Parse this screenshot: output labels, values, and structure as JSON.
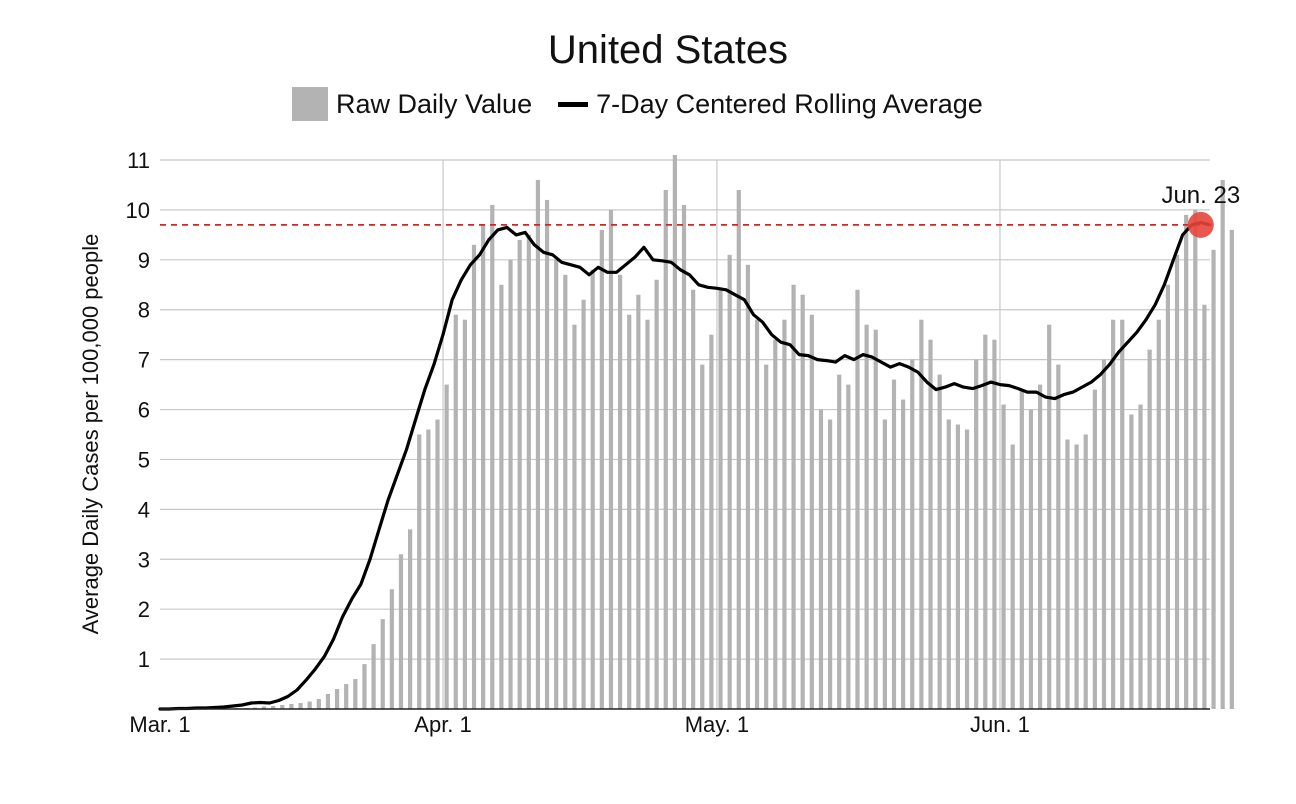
{
  "chart_data": {
    "type": "bar",
    "title": "United States",
    "ylabel": "Average Daily Cases per 100,000 people",
    "xlabel": "",
    "legend": [
      {
        "label": "Raw Daily Value",
        "kind": "bar",
        "color": "#b3b3b3"
      },
      {
        "label": "7-Day Centered Rolling Average",
        "kind": "line",
        "color": "#000000"
      }
    ],
    "legend_position": "top-center",
    "grid": true,
    "ylim": [
      0,
      11
    ],
    "yticks": [
      1,
      2,
      3,
      4,
      5,
      6,
      7,
      8,
      9,
      10,
      11
    ],
    "xticks": [
      {
        "label": "Mar. 1",
        "day": 0
      },
      {
        "label": "Apr. 1",
        "day": 31
      },
      {
        "label": "May. 1",
        "day": 61
      },
      {
        "label": "Jun. 1",
        "day": 92
      }
    ],
    "x_start": "Mar. 1",
    "series": [
      {
        "name": "Raw Daily Value",
        "kind": "bar",
        "values": [
          0.0,
          0.0,
          0.0,
          0.0,
          0.0,
          0.01,
          0.01,
          0.01,
          0.02,
          0.02,
          0.03,
          0.05,
          0.06,
          0.08,
          0.1,
          0.12,
          0.15,
          0.2,
          0.3,
          0.4,
          0.5,
          0.6,
          0.9,
          1.3,
          1.8,
          2.4,
          3.1,
          3.6,
          5.5,
          5.6,
          5.8,
          6.5,
          7.9,
          7.8,
          9.3,
          9.7,
          10.1,
          8.5,
          9.0,
          9.4,
          9.5,
          10.6,
          10.2,
          9.0,
          8.7,
          7.7,
          8.2,
          8.8,
          9.6,
          10.0,
          8.7,
          7.9,
          8.3,
          7.8,
          8.6,
          10.4,
          11.1,
          10.1,
          8.4,
          6.9,
          7.5,
          8.4,
          9.1,
          10.4,
          8.9,
          7.8,
          6.9,
          7.4,
          7.8,
          8.5,
          8.3,
          7.9,
          6.0,
          5.8,
          6.7,
          6.5,
          8.4,
          7.7,
          7.6,
          5.8,
          6.6,
          6.2,
          7.0,
          7.8,
          7.4,
          6.7,
          5.8,
          5.7,
          5.6,
          7.0,
          7.5,
          7.4,
          6.1,
          5.3,
          6.4,
          6.0,
          6.5,
          7.7,
          6.9,
          5.4,
          5.3,
          5.5,
          6.4,
          7.0,
          7.8,
          7.8,
          5.9,
          6.1,
          7.2,
          7.8,
          8.5,
          9.1,
          9.9,
          10.0,
          8.1,
          9.2,
          10.6,
          9.6
        ]
      },
      {
        "name": "7-Day Centered Rolling Average",
        "kind": "line",
        "values": [
          0.0,
          0.0,
          0.01,
          0.01,
          0.02,
          0.02,
          0.03,
          0.04,
          0.06,
          0.08,
          0.12,
          0.13,
          0.12,
          0.17,
          0.25,
          0.38,
          0.58,
          0.8,
          1.05,
          1.4,
          1.85,
          2.2,
          2.5,
          3.0,
          3.6,
          4.2,
          4.7,
          5.2,
          5.8,
          6.4,
          6.9,
          7.5,
          8.2,
          8.6,
          8.9,
          9.1,
          9.4,
          9.6,
          9.65,
          9.5,
          9.55,
          9.3,
          9.15,
          9.1,
          8.95,
          8.9,
          8.85,
          8.7,
          8.85,
          8.75,
          8.75,
          8.9,
          9.05,
          9.25,
          9.0,
          8.98,
          8.95,
          8.8,
          8.7,
          8.5,
          8.45,
          8.43,
          8.4,
          8.3,
          8.2,
          7.9,
          7.75,
          7.5,
          7.35,
          7.3,
          7.1,
          7.08,
          7.0,
          6.98,
          6.95,
          7.08,
          7.0,
          7.1,
          7.05,
          6.95,
          6.85,
          6.92,
          6.85,
          6.75,
          6.55,
          6.4,
          6.45,
          6.52,
          6.45,
          6.42,
          6.48,
          6.55,
          6.5,
          6.48,
          6.42,
          6.35,
          6.35,
          6.25,
          6.22,
          6.3,
          6.35,
          6.45,
          6.55,
          6.7,
          6.9,
          7.15,
          7.35,
          7.55,
          7.8,
          8.1,
          8.5,
          9.0,
          9.5,
          9.7,
          9.75,
          9.7
        ]
      }
    ],
    "reference_line": {
      "value": 9.7,
      "color": "#e0201b",
      "style": "dashed"
    },
    "annotation": {
      "label": "Jun. 23",
      "day": 114,
      "value": 9.7,
      "marker_color": "#e8453c"
    }
  }
}
